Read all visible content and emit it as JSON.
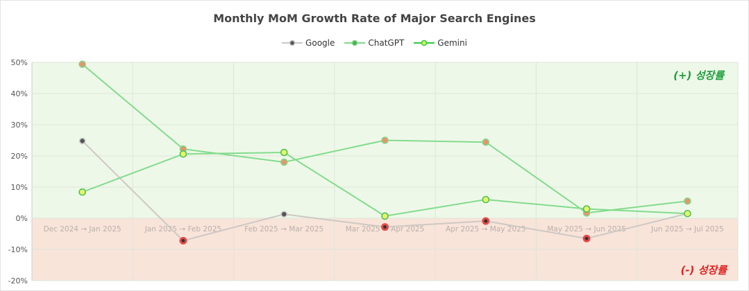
{
  "chart_data": {
    "type": "line",
    "title": "Monthly MoM Growth Rate of Major Search Engines",
    "xlabel": "",
    "ylabel": "",
    "categories": [
      "Dec 2024 → Jan 2025",
      "Jan 2025 → Feb 2025",
      "Feb 2025 → Mar 2025",
      "Mar 2025 → Apr 2025",
      "Apr 2025 → May 2025",
      "May 2025 → Jun 2025",
      "Jun 2025 → Jul 2025"
    ],
    "ylim": [
      -20,
      50
    ],
    "yticks": [
      "-20%",
      "-10%",
      "0%",
      "10%",
      "20%",
      "30%",
      "40%",
      "50%"
    ],
    "grid": true,
    "legend_position": "top-center",
    "series": [
      {
        "name": "Google",
        "values": [
          24.8,
          -7.2,
          1.3,
          -2.8,
          -0.9,
          -6.5,
          1.5
        ],
        "color": "#c8c8c8",
        "marker": "#555555"
      },
      {
        "name": "ChatGPT",
        "values": [
          49.4,
          22.2,
          18.0,
          25.0,
          24.4,
          1.7,
          5.5
        ],
        "color": "#7fd98a",
        "marker": "#4caf50"
      },
      {
        "name": "Gemini",
        "values": [
          8.4,
          20.6,
          21.1,
          0.7,
          6.0,
          3.0,
          1.5
        ],
        "color": "#7fd98a",
        "marker": "#d8f25a"
      }
    ],
    "annotations": {
      "positive": "(+) 성장률",
      "negative": "(-) 성장률"
    },
    "colors": {
      "positive_bg": "#eef8e9",
      "negative_bg": "#f9e4da",
      "positive_text": "#1e9e3c",
      "negative_text": "#e02020",
      "negative_marker": "#e84a4a",
      "negative_marker_fill_chatgpt": "#e8946a"
    }
  }
}
